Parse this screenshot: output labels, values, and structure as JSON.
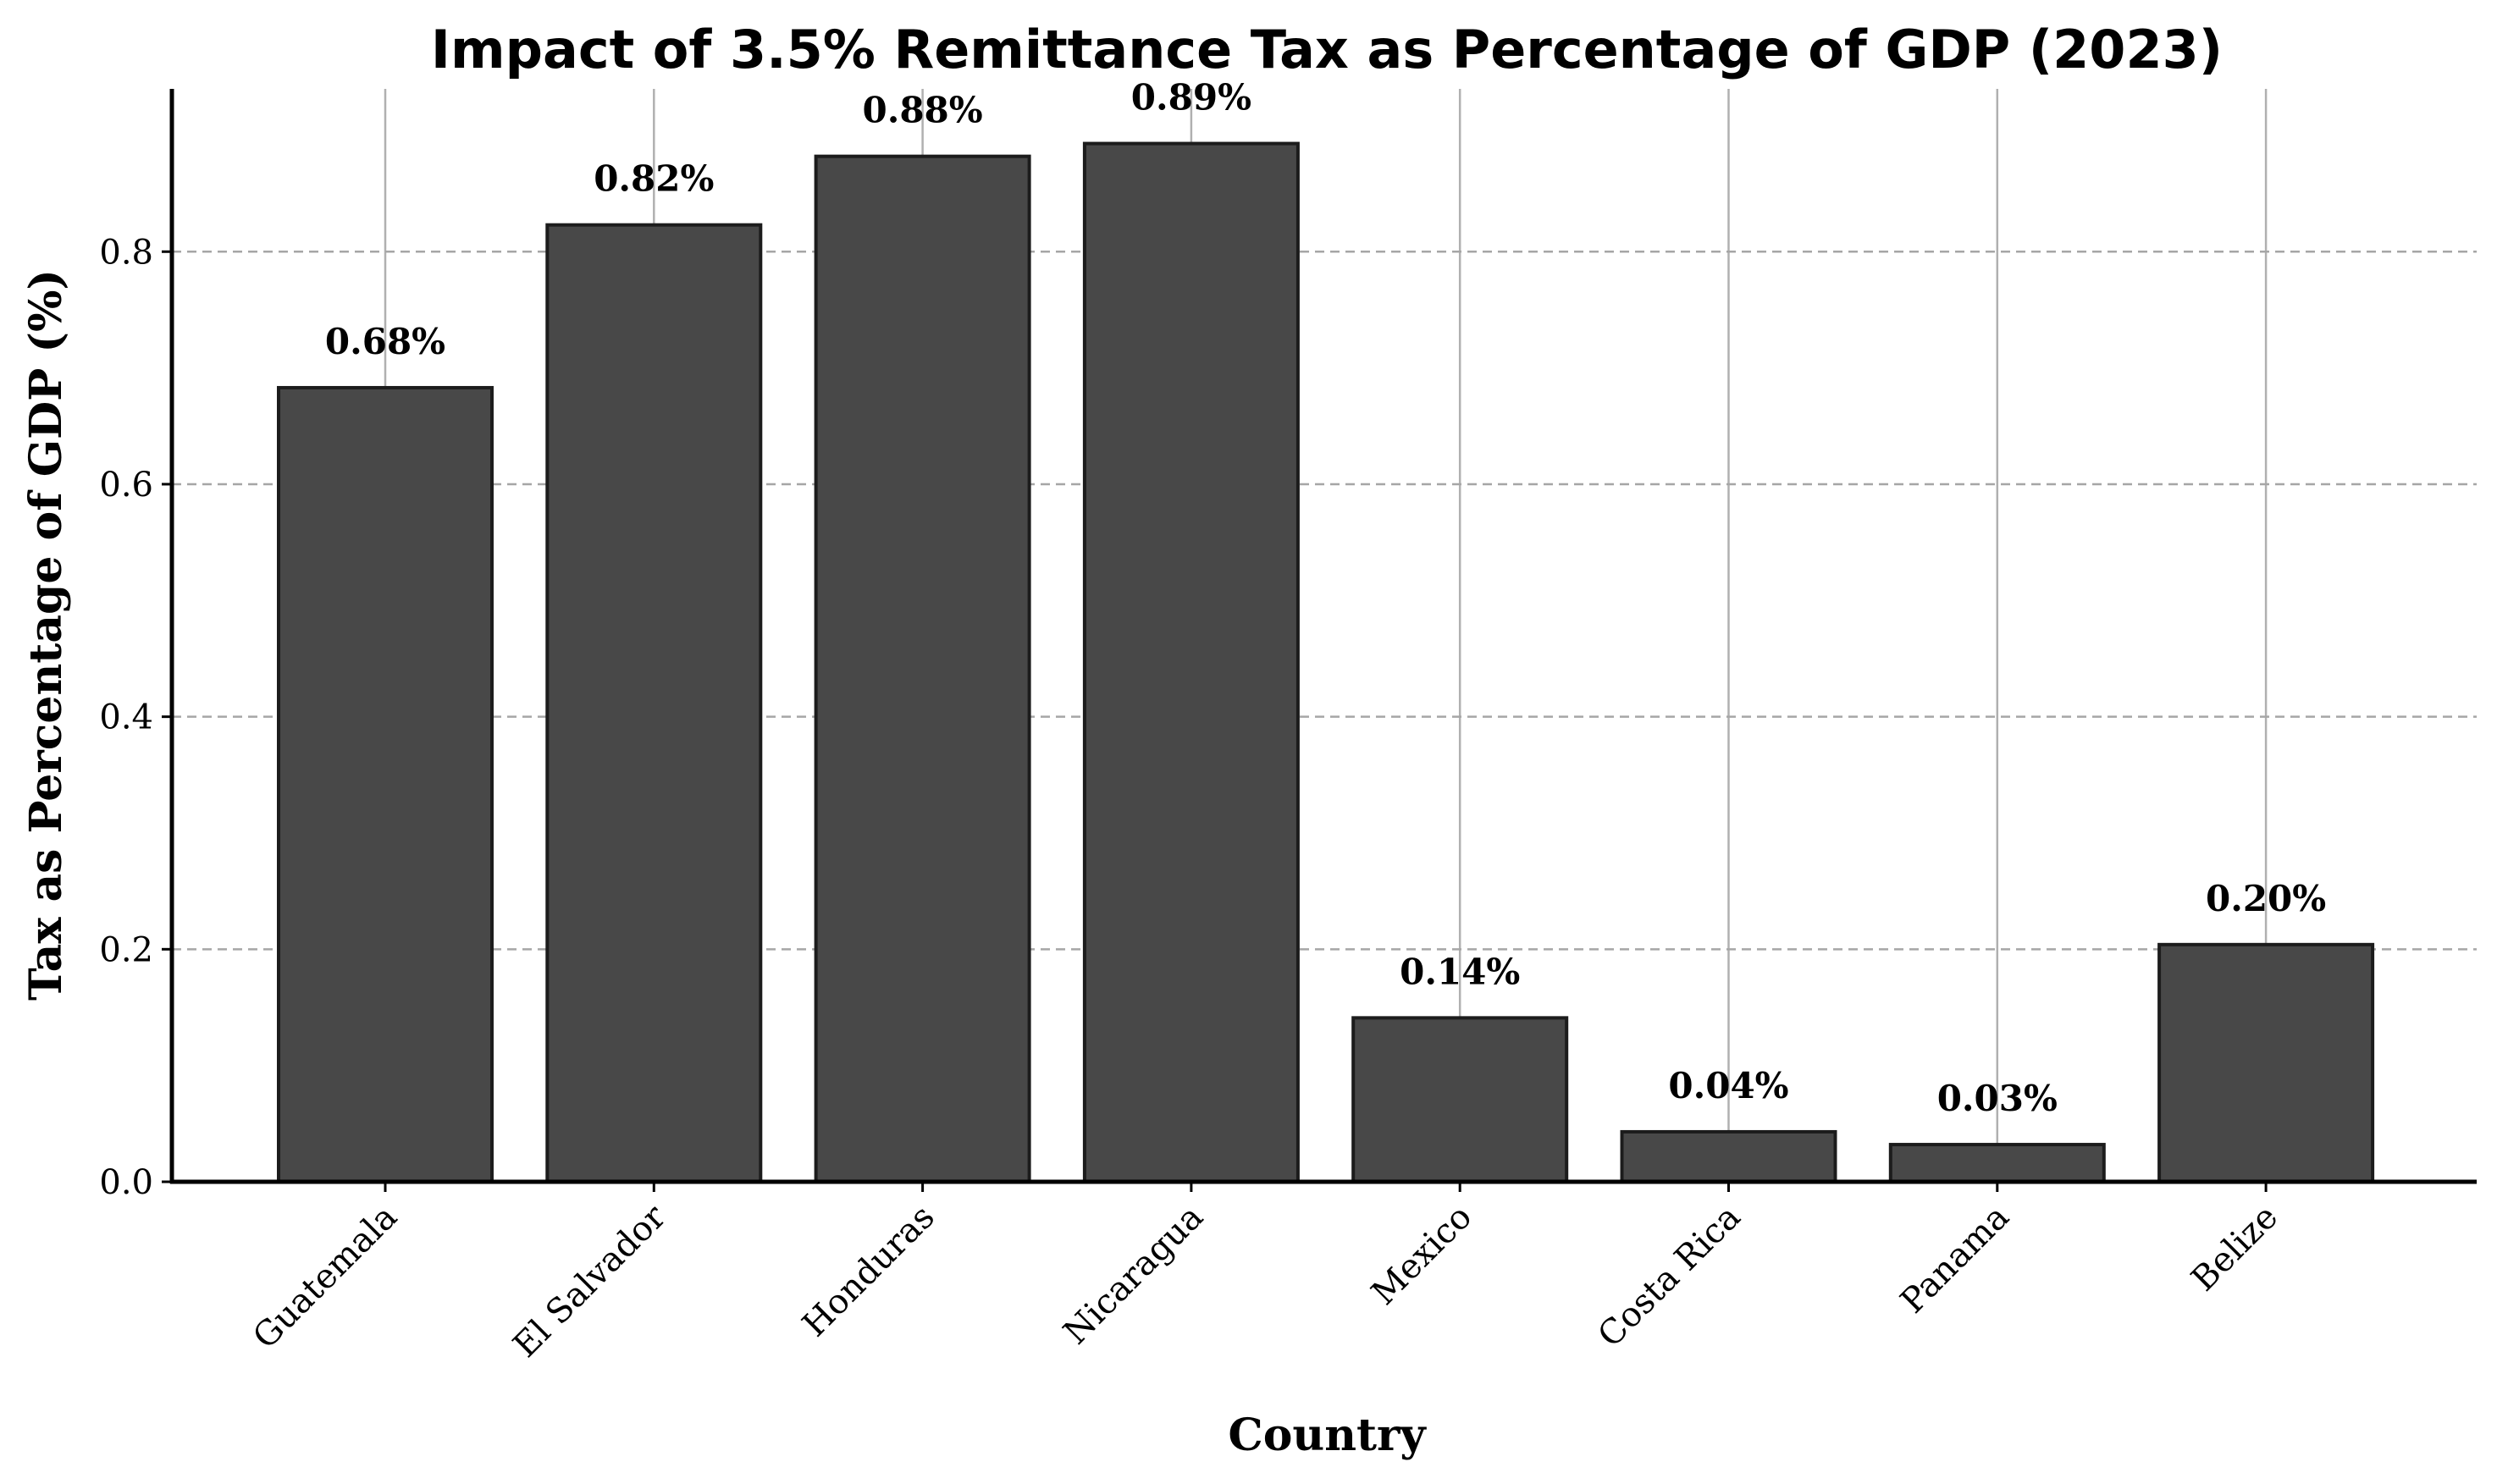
{
  "chart_data": {
    "type": "bar",
    "title": "Impact of 3.5% Remittance Tax as Percentage of GDP (2023)",
    "xlabel": "Country",
    "ylabel": "Tax as Percentage of GDP (%)",
    "categories": [
      "Guatemala",
      "El Salvador",
      "Honduras",
      "Nicaragua",
      "Mexico",
      "Costa Rica",
      "Panama",
      "Belize"
    ],
    "values": [
      0.683,
      0.823,
      0.882,
      0.893,
      0.141,
      0.043,
      0.032,
      0.204
    ],
    "value_labels": [
      "0.68%",
      "0.82%",
      "0.88%",
      "0.89%",
      "0.14%",
      "0.04%",
      "0.03%",
      "0.20%"
    ],
    "ylim": [
      0,
      0.94
    ],
    "yticks": [
      0.0,
      0.2,
      0.4,
      0.6,
      0.8
    ],
    "ytick_labels": [
      "0.0",
      "0.2",
      "0.4",
      "0.6",
      "0.8"
    ],
    "grid": true,
    "legend": false,
    "colors": {
      "bar": "#484848",
      "bar_edge": "#1c1c1c",
      "grid": "#a6a6a6"
    }
  }
}
